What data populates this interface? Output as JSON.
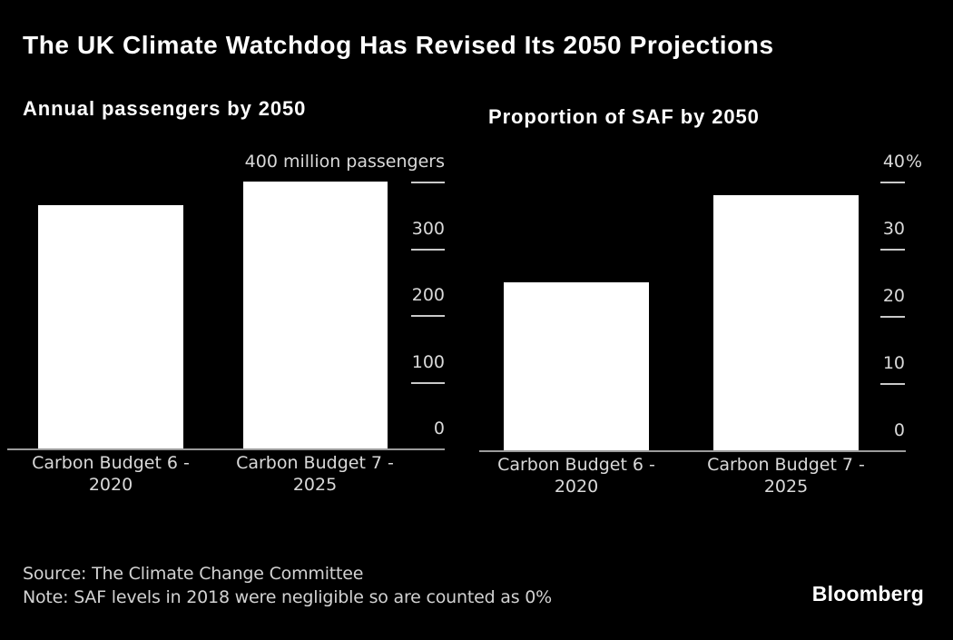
{
  "page": {
    "title": "The UK Climate Watchdog Has Revised Its 2050 Projections",
    "source_line": "Source: The Climate Change Committee",
    "note_line": "Note: SAF levels in 2018 were negligible so are counted as 0%",
    "brand": "Bloomberg",
    "background_color": "#000000",
    "title_color": "#ffffff",
    "label_color": "#d9d9d9",
    "axis_color": "#9b9b9b",
    "tick_color": "#c9c9c9"
  },
  "chart_data": [
    {
      "type": "bar",
      "title": "Annual passengers by 2050",
      "categories": [
        "Carbon Budget 6 - 2020",
        "Carbon Budget 7 - 2025"
      ],
      "category_lines": [
        [
          "Carbon Budget 6 -",
          "2020"
        ],
        [
          "Carbon Budget 7 -",
          "2025"
        ]
      ],
      "values": [
        365,
        400
      ],
      "unit": "million passengers",
      "ylim": [
        0,
        400
      ],
      "yticks": [
        {
          "value": 400,
          "label": "400 million passengers"
        },
        {
          "value": 300,
          "label": "300"
        },
        {
          "value": 200,
          "label": "200"
        },
        {
          "value": 100,
          "label": "100"
        },
        {
          "value": 0,
          "label": "0"
        }
      ],
      "bar_color": "#ffffff",
      "axis_position": "right",
      "grid": false
    },
    {
      "type": "bar",
      "title": "Proportion of SAF by 2050",
      "categories": [
        "Carbon Budget 6 - 2020",
        "Carbon Budget 7 - 2025"
      ],
      "category_lines": [
        [
          "Carbon Budget 6 -",
          "2020"
        ],
        [
          "Carbon Budget 7 -",
          "2025"
        ]
      ],
      "values": [
        25,
        38
      ],
      "unit": "%",
      "ylim": [
        0,
        40
      ],
      "yticks": [
        {
          "value": 40,
          "label": "40",
          "suffix": "%"
        },
        {
          "value": 30,
          "label": "30"
        },
        {
          "value": 20,
          "label": "20"
        },
        {
          "value": 10,
          "label": "10"
        },
        {
          "value": 0,
          "label": "0"
        }
      ],
      "bar_color": "#ffffff",
      "axis_position": "right",
      "grid": false
    }
  ]
}
